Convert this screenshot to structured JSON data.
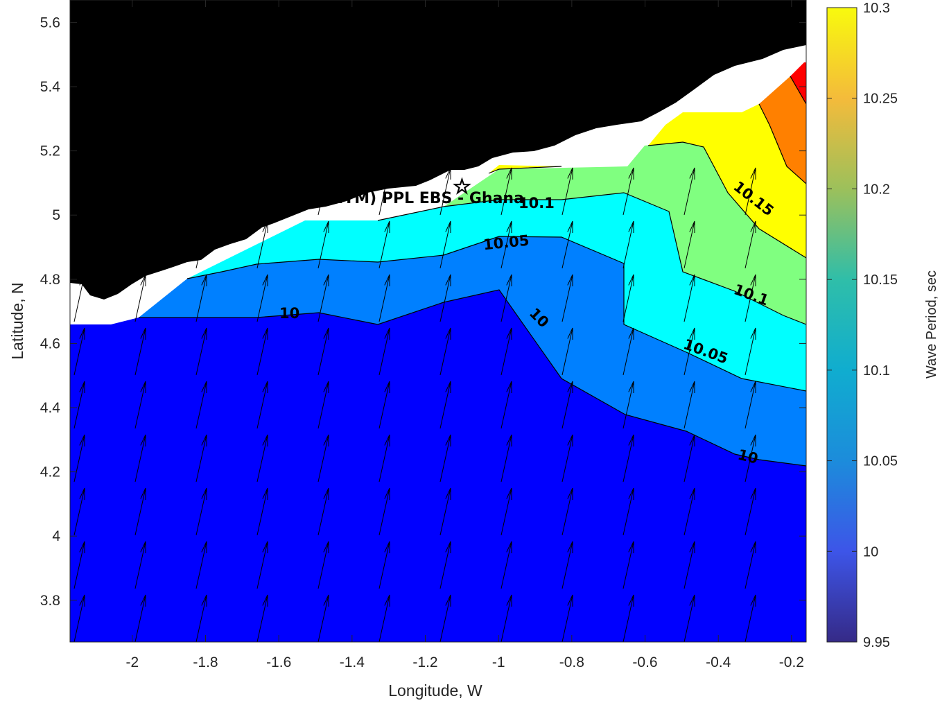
{
  "chart_data": {
    "type": "contour",
    "xlabel": "Longitude, W",
    "ylabel": "Latitude, N",
    "xlim": [
      -2.17,
      -0.16
    ],
    "ylim": [
      3.67,
      5.67
    ],
    "xticks": [
      -2,
      -1.8,
      -1.6,
      -1.4,
      -1.2,
      -1,
      -0.8,
      -0.6,
      -0.4,
      -0.2
    ],
    "xtick_labels": [
      "-2",
      "-1.8",
      "-1.6",
      "-1.4",
      "-1.2",
      "-1",
      "-0.8",
      "-0.6",
      "-0.4",
      "-0.2"
    ],
    "yticks": [
      3.8,
      4,
      4.2,
      4.4,
      4.6,
      4.8,
      5,
      5.2,
      5.4,
      5.6
    ],
    "ytick_labels": [
      "3.8",
      "4",
      "4.2",
      "4.4",
      "4.6",
      "4.8",
      "5",
      "5.2",
      "5.4",
      "5.6"
    ],
    "colorbar": {
      "label": "Wave Period, sec",
      "range": [
        9.95,
        10.3
      ],
      "ticks": [
        9.95,
        10,
        10.05,
        10.1,
        10.15,
        10.2,
        10.25,
        10.3
      ],
      "tick_labels": [
        "9.95",
        "10",
        "10.05",
        "10.1",
        "10.15",
        "10.2",
        "10.25",
        "10.3"
      ]
    },
    "contour_levels": [
      {
        "value": 10,
        "label": "10"
      },
      {
        "value": 10.05,
        "label": "10.05"
      },
      {
        "value": 10.1,
        "label": "10.1"
      },
      {
        "value": 10.15,
        "label": "10.15"
      }
    ],
    "contour_labels_shown": [
      "10",
      "10",
      "10",
      "10.05",
      "10.05",
      "10.1",
      "10.1",
      "10.15"
    ],
    "fill_colors": [
      "#0000ff",
      "#0080ff",
      "#00ffff",
      "#80ff80",
      "#ffff00",
      "#ff8000",
      "#ff0000"
    ],
    "land_color": "#000000",
    "site_marker": {
      "lon": -1.1,
      "lat": 5.11,
      "symbol": "☆"
    },
    "site_label": "EA (ONHYM) PPL EBS - Ghana",
    "vectors": {
      "direction": "north-north-east",
      "uniform_length": true
    },
    "grid": false
  }
}
